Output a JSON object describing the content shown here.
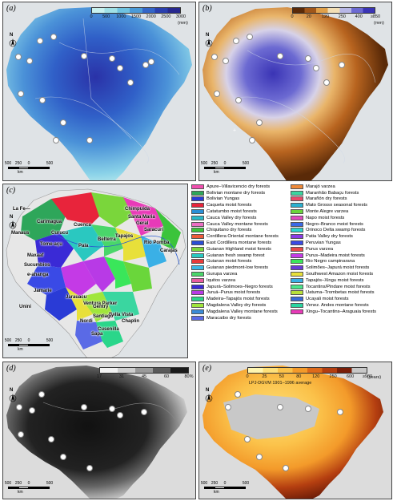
{
  "panels": {
    "a": {
      "label": "(a)",
      "colorbar": {
        "ticks": [
          "0",
          "500",
          "1000",
          "1500",
          "2000",
          "2500",
          "3000"
        ],
        "unit": "(mm)",
        "colors": [
          "#c8f1ef",
          "#9fe0e6",
          "#6fc3e1",
          "#4a9ad8",
          "#3466c8",
          "#2a3fae",
          "#27288f"
        ]
      },
      "scale": {
        "ticks": [
          "500",
          "250",
          "0",
          "500"
        ],
        "unit": "km"
      },
      "north": "N"
    },
    "b": {
      "label": "(b)",
      "colorbar": {
        "ticks": [
          "0",
          "20",
          "120",
          "250",
          "400",
          "≥850"
        ],
        "unit": "(mm)",
        "colors": [
          "#5a2a08",
          "#a0561a",
          "#e0a04a",
          "#f3dfb5",
          "#b7b7e6",
          "#6c6ad2",
          "#3a34b5"
        ]
      },
      "scale": {
        "ticks": [
          "500",
          "250",
          "0",
          "500"
        ],
        "unit": "km"
      },
      "north": "N"
    },
    "c": {
      "label": "(c)",
      "scale": {
        "ticks": [
          "500",
          "250",
          "0",
          "500"
        ],
        "unit": "km"
      },
      "north": "N",
      "map_labels": [
        "La Fe—",
        "Carimagua",
        "Curucu",
        "Tome-açu",
        "Chimpuida",
        "Santa Maria",
        "Geral",
        "Saracuri",
        "Tapajos",
        "Belterra",
        "Rio Pomba",
        "Carajas",
        "Pala",
        "Maxaaf",
        "Sucumbios",
        "e-ahanga",
        "Jamarie",
        "Manaus",
        "Cuenca",
        "Unini",
        "Ventura Parker",
        "Jarauacu",
        "Nordi",
        "Bella Vista",
        "Chaplin",
        "Santiago",
        "Sapa",
        "Cusenilla",
        "Gentry"
      ],
      "legend": [
        {
          "name": "Apure–Villavicencio dry forests",
          "color": "#ef4fae"
        },
        {
          "name": "Bolivian montane dry forests",
          "color": "#2ea65a"
        },
        {
          "name": "Bolivian Yungas",
          "color": "#2a3bd6"
        },
        {
          "name": "Caqueta moist forests",
          "color": "#e8243b"
        },
        {
          "name": "Catatumbo moist forests",
          "color": "#2a8fd6"
        },
        {
          "name": "Cauca Valley dry forests",
          "color": "#2ab8c8"
        },
        {
          "name": "Cauca Valley montane forests",
          "color": "#ec6fc4"
        },
        {
          "name": "Chiquitano dry forests",
          "color": "#3bc43b"
        },
        {
          "name": "Cordillera Oriental montane forests",
          "color": "#ee5a3a"
        },
        {
          "name": "East Cordillera montane forests",
          "color": "#2a4dd6"
        },
        {
          "name": "Guianan Highland moist forests",
          "color": "#7ad63b"
        },
        {
          "name": "Guianan fresh swamp forest",
          "color": "#2ac8c0"
        },
        {
          "name": "Guianan moist forests",
          "color": "#e83a3a"
        },
        {
          "name": "Guianan piedmont-low forests",
          "color": "#3bb8e6"
        },
        {
          "name": "Gurupa varzea",
          "color": "#4ad66a"
        },
        {
          "name": "Iquitos varzea",
          "color": "#e85aa0"
        },
        {
          "name": "Japurá–Solimoes–Negro forests",
          "color": "#3a2ad6"
        },
        {
          "name": "Juruá–Purus moist forests",
          "color": "#b83ae6"
        },
        {
          "name": "Madeira–Tapajós moist forests",
          "color": "#2ad68a"
        },
        {
          "name": "Magdalena Valley dry forests",
          "color": "#a0e63b"
        },
        {
          "name": "Magdalena Valley montane forests",
          "color": "#3a8ad6"
        },
        {
          "name": "Maracaibo dry forests",
          "color": "#5a6ae6"
        },
        {
          "name": "Marajó varzea",
          "color": "#ee8a3a"
        },
        {
          "name": "Maranhão Babaçu forests",
          "color": "#3ad6a0"
        },
        {
          "name": "Marañón dry forests",
          "color": "#e84a6a"
        },
        {
          "name": "Mato Grosso seasonal forests",
          "color": "#2ab0d0"
        },
        {
          "name": "Monte Alegre varzea",
          "color": "#6ad63b"
        },
        {
          "name": "Napo moist forests",
          "color": "#e04ac0"
        },
        {
          "name": "Negro–Branco moist forests",
          "color": "#3b6ae6"
        },
        {
          "name": "Orinoco Delta swamp forests",
          "color": "#2ad6d0"
        },
        {
          "name": "Patia Valley dry forests",
          "color": "#8a3ae6"
        },
        {
          "name": "Peruvian Yungas",
          "color": "#3a4ae6"
        },
        {
          "name": "Purus varzea",
          "color": "#e84a4a"
        },
        {
          "name": "Purus–Madeira moist forests",
          "color": "#c43ae6"
        },
        {
          "name": "Rio Negro campinarana",
          "color": "#3ae65a"
        },
        {
          "name": "Solimões–Japurá moist forests",
          "color": "#6a3ad6"
        },
        {
          "name": "Southwest Amazon moist forests",
          "color": "#e8e03a"
        },
        {
          "name": "Tapajós–Xingu moist forests",
          "color": "#3ab0e6"
        },
        {
          "name": "Tocantins/Pindare moist forests",
          "color": "#4ae68a"
        },
        {
          "name": "Uatuma–Trombetas moist forests",
          "color": "#b8e03a"
        },
        {
          "name": "Ucayali moist forests",
          "color": "#3a6ad6"
        },
        {
          "name": "Venez. Andes montane forests",
          "color": "#2ad6a0"
        },
        {
          "name": "Xingu–Tocantins–Araguaia forests",
          "color": "#e83ab8"
        }
      ]
    },
    "d": {
      "label": "(d)",
      "colorbar": {
        "ticks": [
          "17",
          "31",
          "45",
          "60",
          "80%"
        ],
        "colors": [
          "#f2f2f2",
          "#cfcfcf",
          "#9a9a9a",
          "#5a5a5a",
          "#1a1a1a"
        ]
      },
      "scale": {
        "ticks": [
          "500",
          "250",
          "0",
          "500"
        ],
        "unit": "km"
      },
      "north": "N"
    },
    "e": {
      "label": "(e)",
      "colorbar": {
        "ticks": [
          "0",
          "25",
          "50",
          "80",
          "120",
          "250",
          "600",
          "≥900"
        ],
        "unit": "(years)",
        "note": "LPJ-DGVM 1901–1996 average",
        "colors": [
          "#fff6b0",
          "#fde07a",
          "#fbc24a",
          "#f39a2a",
          "#dd6a1a",
          "#b43e10",
          "#7a1e08",
          "#c8c8c8"
        ]
      },
      "scale": {
        "ticks": [
          "500",
          "250",
          "0",
          "500"
        ],
        "unit": "km"
      },
      "north": "N"
    }
  }
}
